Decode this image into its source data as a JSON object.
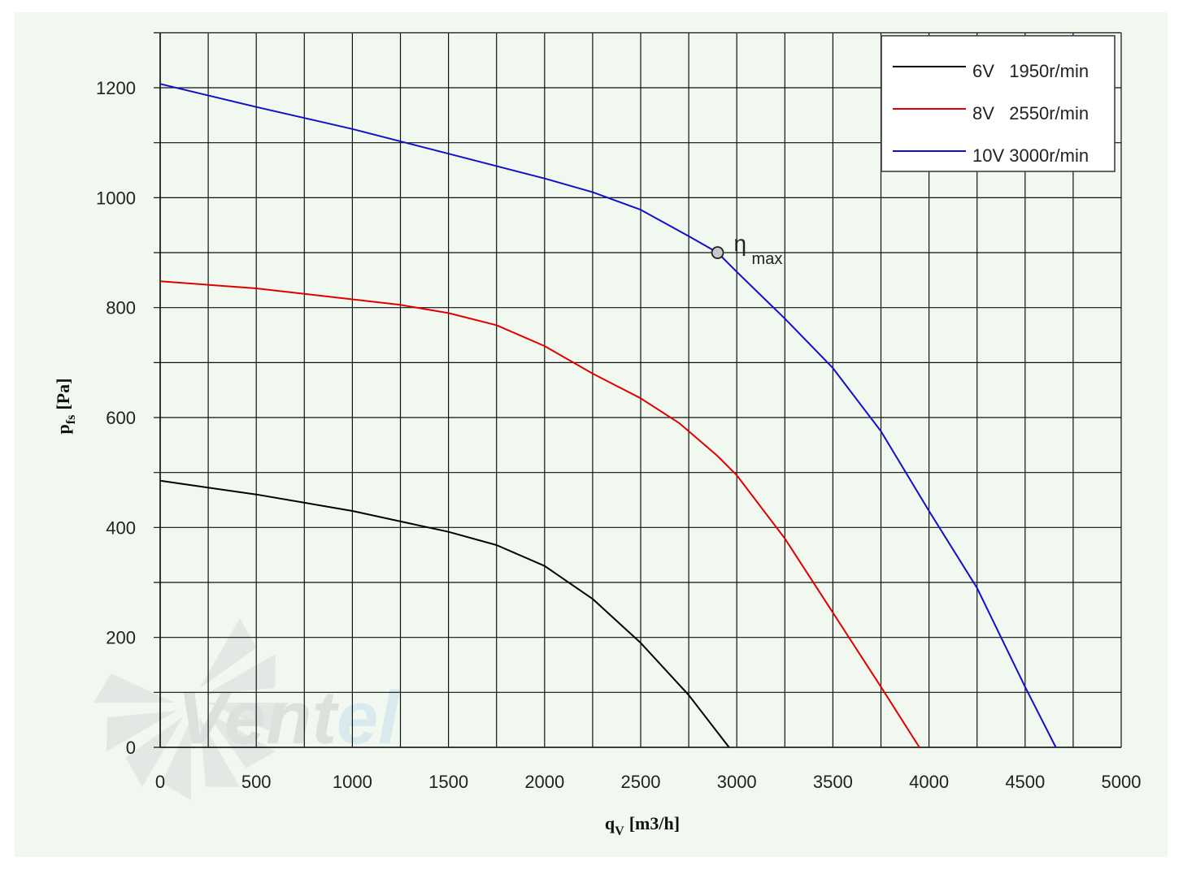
{
  "chart_data": {
    "type": "line",
    "xlabel": "q",
    "xlabel_sub": "V",
    "xlabel_unit": "[m3/h]",
    "ylabel": "p",
    "ylabel_sub": "fs",
    "ylabel_unit": "[Pa]",
    "xlim": [
      0,
      5000
    ],
    "ylim": [
      0,
      1200
    ],
    "xticks": [
      0,
      500,
      1000,
      1500,
      2000,
      2500,
      3000,
      3500,
      4000,
      4500,
      5000
    ],
    "yticks": [
      0,
      200,
      400,
      600,
      800,
      1000,
      1200
    ],
    "grid": true,
    "legend_position": "top-right",
    "series": [
      {
        "name": "6V   1950r/min",
        "color": "#000000",
        "points": [
          [
            0,
            485
          ],
          [
            500,
            460
          ],
          [
            1000,
            430
          ],
          [
            1500,
            392
          ],
          [
            1750,
            368
          ],
          [
            2000,
            330
          ],
          [
            2250,
            270
          ],
          [
            2500,
            190
          ],
          [
            2750,
            95
          ],
          [
            2960,
            0
          ]
        ]
      },
      {
        "name": "8V   2550r/min",
        "color": "#e00000",
        "points": [
          [
            0,
            848
          ],
          [
            500,
            835
          ],
          [
            1000,
            815
          ],
          [
            1250,
            805
          ],
          [
            1500,
            790
          ],
          [
            1750,
            768
          ],
          [
            2000,
            730
          ],
          [
            2250,
            680
          ],
          [
            2500,
            635
          ],
          [
            2700,
            590
          ],
          [
            2900,
            530
          ],
          [
            3000,
            495
          ],
          [
            3250,
            380
          ],
          [
            3500,
            245
          ],
          [
            3750,
            110
          ],
          [
            3950,
            0
          ]
        ]
      },
      {
        "name": "10V 3000r/min",
        "color": "#1010c8",
        "points": [
          [
            0,
            1207
          ],
          [
            500,
            1165
          ],
          [
            1000,
            1125
          ],
          [
            1500,
            1080
          ],
          [
            2000,
            1035
          ],
          [
            2250,
            1010
          ],
          [
            2500,
            978
          ],
          [
            2750,
            930
          ],
          [
            2900,
            900
          ],
          [
            3000,
            865
          ],
          [
            3250,
            780
          ],
          [
            3500,
            690
          ],
          [
            3750,
            575
          ],
          [
            4000,
            430
          ],
          [
            4250,
            290
          ],
          [
            4500,
            110
          ],
          [
            4660,
            0
          ]
        ]
      }
    ],
    "annotation": {
      "text": "η",
      "sub": "max",
      "x": 2900,
      "y": 900
    }
  },
  "watermark": "Ventel"
}
